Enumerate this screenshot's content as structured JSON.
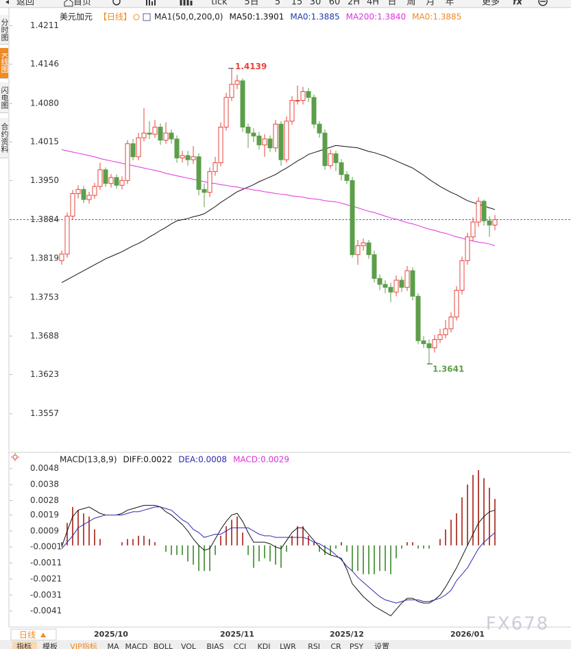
{
  "toolbar": [
    "返回",
    "首页",
    "tick",
    "5日",
    "5",
    "15",
    "30",
    "60",
    "2H",
    "4H",
    "日",
    "周",
    "月",
    "年",
    "更多",
    "fx"
  ],
  "sidebar": [
    "分时图",
    "K线图",
    "闪电图",
    "合约资料"
  ],
  "period_button": "日线",
  "tabs": [
    "指标",
    "模板",
    "VIP指标",
    "MA",
    "MACD",
    "BOLL",
    "VOL",
    "BIAS",
    "CCI",
    "KDJ",
    "LWR",
    "RSI",
    "CR",
    "PSY",
    "设置"
  ],
  "watermark": "FX678",
  "chart_data": [
    {
      "type": "candlestick",
      "title": "美元加元",
      "period": "【日线】",
      "indicator": "MA1(50,0,200,0)",
      "up_color": "#e5433b",
      "down_color": "#5c9e4a",
      "open": [
        1.3815,
        1.3826,
        1.389,
        1.3928,
        1.3935,
        1.3918,
        1.3925,
        1.394,
        1.3968,
        1.3945,
        1.3955,
        1.3942,
        1.395,
        1.4012,
        1.399,
        1.4022,
        1.403,
        1.4028,
        1.404,
        1.4018,
        1.403,
        1.402,
        1.3988,
        1.3992,
        1.3985,
        1.399,
        1.3935,
        1.393,
        1.3965,
        1.398,
        1.404,
        1.409,
        1.4112,
        1.4118,
        1.404,
        1.403,
        1.4025,
        1.401,
        1.402,
        1.4005,
        1.4045,
        1.3985,
        1.405,
        1.4085,
        1.4085,
        1.41,
        1.409,
        1.4045,
        1.403,
        1.3975,
        1.3995,
        1.398,
        1.396,
        1.395,
        1.3825,
        1.384,
        1.3845,
        1.3825,
        1.3785,
        1.3775,
        1.377,
        1.3762,
        1.3782,
        1.377,
        1.3798,
        1.3755,
        1.368,
        1.3675,
        1.3668,
        1.3682,
        1.369,
        1.37,
        1.372,
        1.3765,
        1.3815,
        1.3855,
        1.388,
        1.3915,
        1.3882,
        1.3875
      ],
      "high": [
        1.3832,
        1.3896,
        1.3934,
        1.3942,
        1.3941,
        1.3931,
        1.3946,
        1.398,
        1.3972,
        1.3961,
        1.396,
        1.3957,
        1.4018,
        1.402,
        1.403,
        1.4072,
        1.405,
        1.4052,
        1.4046,
        1.4048,
        1.4036,
        1.4026,
        1.4,
        1.4,
        1.4008,
        1.3996,
        1.3945,
        1.3972,
        1.399,
        1.4048,
        1.4098,
        1.4139,
        1.4128,
        1.4122,
        1.4046,
        1.4038,
        1.4032,
        1.4028,
        1.4026,
        1.4052,
        1.405,
        1.4058,
        1.4092,
        1.411,
        1.4108,
        1.4106,
        1.4095,
        1.405,
        1.4036,
        1.4002,
        1.4,
        1.3986,
        1.3966,
        1.3956,
        1.385,
        1.3852,
        1.385,
        1.3832,
        1.3792,
        1.3782,
        1.3778,
        1.379,
        1.3788,
        1.3806,
        1.3804,
        1.376,
        1.3688,
        1.3682,
        1.369,
        1.37,
        1.3715,
        1.3728,
        1.3772,
        1.3822,
        1.3862,
        1.3888,
        1.3922,
        1.3918,
        1.389,
        1.3892
      ],
      "low": [
        1.3808,
        1.382,
        1.3884,
        1.392,
        1.3912,
        1.3911,
        1.3919,
        1.3934,
        1.3939,
        1.3938,
        1.3936,
        1.3935,
        1.3944,
        1.3984,
        1.3984,
        1.4016,
        1.402,
        1.4022,
        1.401,
        1.4012,
        1.4012,
        1.398,
        1.398,
        1.3975,
        1.3978,
        1.3925,
        1.3905,
        1.3922,
        1.3958,
        1.3974,
        1.4034,
        1.4084,
        1.4104,
        1.4032,
        1.4005,
        1.4015,
        1.4002,
        1.399,
        1.3998,
        1.3998,
        1.3975,
        1.398,
        1.4044,
        1.4078,
        1.4078,
        1.4082,
        1.4038,
        1.4022,
        1.3968,
        1.397,
        1.3966,
        1.395,
        1.3944,
        1.382,
        1.3808,
        1.3832,
        1.3818,
        1.3778,
        1.3765,
        1.376,
        1.3745,
        1.3755,
        1.3762,
        1.3764,
        1.3748,
        1.3674,
        1.3668,
        1.3641,
        1.366,
        1.3676,
        1.3684,
        1.3694,
        1.3714,
        1.3758,
        1.3808,
        1.3848,
        1.3872,
        1.3874,
        1.3855,
        1.3866
      ],
      "close": [
        1.3826,
        1.389,
        1.3928,
        1.3935,
        1.3918,
        1.3925,
        1.394,
        1.3968,
        1.3945,
        1.3955,
        1.3942,
        1.395,
        1.4012,
        1.399,
        1.4022,
        1.403,
        1.4028,
        1.404,
        1.4018,
        1.403,
        1.402,
        1.3988,
        1.3992,
        1.3985,
        1.399,
        1.3935,
        1.393,
        1.3965,
        1.398,
        1.404,
        1.409,
        1.4112,
        1.4118,
        1.404,
        1.403,
        1.4025,
        1.401,
        1.402,
        1.4005,
        1.4045,
        1.3985,
        1.405,
        1.4085,
        1.4085,
        1.41,
        1.409,
        1.4045,
        1.403,
        1.3975,
        1.3995,
        1.398,
        1.396,
        1.395,
        1.3825,
        1.384,
        1.3845,
        1.3825,
        1.3785,
        1.3775,
        1.377,
        1.3762,
        1.3782,
        1.377,
        1.3798,
        1.3755,
        1.368,
        1.3675,
        1.3668,
        1.3682,
        1.369,
        1.37,
        1.372,
        1.3765,
        1.3815,
        1.3855,
        1.388,
        1.3915,
        1.3882,
        1.3875,
        1.3884
      ],
      "series": [
        {
          "name": "MA50:1.3901",
          "color": "#111111",
          "values": [
            1.3778,
            1.3783,
            1.3788,
            1.3793,
            1.3798,
            1.3803,
            1.3808,
            1.3813,
            1.3818,
            1.3822,
            1.3826,
            1.383,
            1.3835,
            1.384,
            1.3844,
            1.3849,
            1.3855,
            1.386,
            1.3866,
            1.3871,
            1.3877,
            1.3882,
            1.3884,
            1.3886,
            1.3889,
            1.3891,
            1.3894,
            1.39,
            1.3906,
            1.3913,
            1.3919,
            1.3925,
            1.3931,
            1.3935,
            1.3939,
            1.3943,
            1.3948,
            1.3952,
            1.3956,
            1.396,
            1.3966,
            1.3971,
            1.3977,
            1.3983,
            1.3988,
            1.3994,
            1.3997,
            1.4,
            1.4003,
            1.4006,
            1.4009,
            1.4008,
            1.4007,
            1.4006,
            1.4005,
            1.4002,
            1.3999,
            1.3997,
            1.3994,
            1.3991,
            1.3987,
            1.3983,
            1.3979,
            1.3975,
            1.3971,
            1.3965,
            1.3959,
            1.3952,
            1.3946,
            1.394,
            1.3935,
            1.393,
            1.3926,
            1.3921,
            1.3916,
            1.3913,
            1.391,
            1.3907,
            1.3904,
            1.3901
          ]
        },
        {
          "name": "MA200:1.3840",
          "color": "#e030e0",
          "values": [
            1.4002,
            1.4,
            1.3998,
            1.3996,
            1.3994,
            1.3992,
            1.399,
            1.3987,
            1.3985,
            1.3983,
            1.3981,
            1.3979,
            1.3977,
            1.3975,
            1.3973,
            1.3971,
            1.3969,
            1.3967,
            1.3965,
            1.3962,
            1.396,
            1.3958,
            1.3956,
            1.3954,
            1.3952,
            1.395,
            1.3948,
            1.3946,
            1.3945,
            1.3943,
            1.3942,
            1.394,
            1.3939,
            1.3937,
            1.3936,
            1.3934,
            1.3933,
            1.3931,
            1.393,
            1.3928,
            1.3927,
            1.3926,
            1.3924,
            1.3923,
            1.3922,
            1.392,
            1.3919,
            1.3918,
            1.3916,
            1.3915,
            1.3914,
            1.3912,
            1.3909,
            1.3907,
            1.3904,
            1.3901,
            1.3898,
            1.3896,
            1.3893,
            1.389,
            1.3887,
            1.3885,
            1.3882,
            1.3879,
            1.3877,
            1.3874,
            1.3871,
            1.3868,
            1.3866,
            1.3863,
            1.3861,
            1.3858,
            1.3855,
            1.3853,
            1.385,
            1.3848,
            1.3846,
            1.3845,
            1.3843,
            1.384
          ]
        }
      ],
      "extra_legend": [
        {
          "name": "MA0:1.3885",
          "color": "#1f3aa8"
        },
        {
          "name": "MA0:1.3885",
          "color": "#f0882a"
        }
      ],
      "last_price": 1.3884,
      "max_label": "1.4139",
      "min_label": "1.3641",
      "ylim": [
        1.3492,
        1.4238
      ],
      "yticks": [
        1.4211,
        1.4146,
        {
          "value": 1.408,
          "label": "1.4080"
        },
        1.4015,
        {
          "value": 1.395,
          "label": "1.3950"
        },
        1.3884,
        1.3819,
        1.3753,
        1.3688,
        1.3623,
        1.3557
      ],
      "grid": false
    },
    {
      "type": "macd",
      "title": "MACD(13,8,9)",
      "categories": [
        null,
        null,
        null,
        null,
        null,
        null,
        null,
        null,
        null,
        "2025/10",
        null,
        null,
        null,
        null,
        null,
        null,
        null,
        null,
        null,
        null,
        null,
        null,
        null,
        null,
        null,
        null,
        null,
        null,
        null,
        null,
        null,
        null,
        "2025/11",
        null,
        null,
        null,
        null,
        null,
        null,
        null,
        null,
        null,
        null,
        null,
        null,
        null,
        null,
        null,
        null,
        null,
        null,
        null,
        "2025/12",
        null,
        null,
        null,
        null,
        null,
        null,
        null,
        null,
        null,
        null,
        null,
        null,
        null,
        null,
        null,
        null,
        null,
        null,
        null,
        null,
        null,
        "2026/01",
        null,
        null,
        null,
        null,
        null
      ],
      "series": [
        {
          "name": "DIFF:0.0022",
          "color": "#111111",
          "values": [
            -0.0001,
            0.0009,
            0.0018,
            0.0022,
            0.0023,
            0.0024,
            0.0022,
            0.002,
            0.0019,
            0.0019,
            0.0019,
            0.002,
            0.0022,
            0.0023,
            0.0024,
            0.0025,
            0.0025,
            0.0025,
            0.0024,
            0.0021,
            0.0019,
            0.0016,
            0.0013,
            0.0009,
            0.0004,
            0.0,
            -0.0003,
            -0.0002,
            0.0004,
            0.001,
            0.0015,
            0.0019,
            0.002,
            0.0015,
            0.0008,
            0.0002,
            0.0002,
            0.0002,
            0.0001,
            -0.0001,
            -0.0002,
            0.0003,
            0.0008,
            0.0011,
            0.0011,
            0.0007,
            0.0003,
            -0.0001,
            -0.0004,
            -0.0006,
            -0.0007,
            -0.0008,
            -0.0015,
            -0.0024,
            -0.0028,
            -0.0032,
            -0.0035,
            -0.0038,
            -0.004,
            -0.0042,
            -0.0044,
            -0.004,
            -0.0036,
            -0.0033,
            -0.0033,
            -0.0035,
            -0.0036,
            -0.0036,
            -0.0034,
            -0.0031,
            -0.0026,
            -0.002,
            -0.0014,
            -0.0007,
            0.0,
            0.0007,
            0.0014,
            0.0018,
            0.0021,
            0.0022
          ]
        },
        {
          "name": "DEA:0.0008",
          "color": "#2a2ab0",
          "values": [
            -0.0002,
            0.0002,
            0.0006,
            0.0011,
            0.0013,
            0.0015,
            0.0017,
            0.0018,
            0.0019,
            0.0019,
            0.0019,
            0.0019,
            0.002,
            0.0021,
            0.0021,
            0.0022,
            0.0023,
            0.0024,
            0.0024,
            0.0023,
            0.0022,
            0.0019,
            0.0016,
            0.0014,
            0.001,
            0.0008,
            0.0005,
            0.0006,
            0.0007,
            0.0007,
            0.0009,
            0.0011,
            0.0011,
            0.0011,
            0.0011,
            0.0009,
            0.0007,
            0.0006,
            0.0006,
            0.0005,
            0.0005,
            0.0005,
            0.0005,
            0.0005,
            0.0005,
            0.0004,
            0.0002,
            0.0001,
            -0.0001,
            -0.0003,
            -0.0006,
            -0.0009,
            -0.0013,
            -0.0016,
            -0.002,
            -0.0023,
            -0.0026,
            -0.0029,
            -0.0032,
            -0.0034,
            -0.0035,
            -0.0036,
            -0.0035,
            -0.0034,
            -0.0034,
            -0.0034,
            -0.0035,
            -0.0035,
            -0.0034,
            -0.0033,
            -0.0031,
            -0.0028,
            -0.0022,
            -0.0018,
            -0.0014,
            -0.0008,
            -0.0002,
            0.0002,
            0.0005,
            0.0008
          ]
        },
        {
          "name": "MACD:0.0029",
          "type": "bar",
          "color": "#e030e0",
          "up_color": "#b8473e",
          "down_color": "#5f9f50",
          "values": [
            0.0002,
            0.0014,
            0.0024,
            0.0022,
            0.002,
            0.0018,
            0.001,
            0.0004,
            0,
            0,
            0,
            0.0002,
            0.0004,
            0.0004,
            0.0006,
            0.0006,
            0.0004,
            0.0002,
            0,
            -0.0004,
            -0.0006,
            -0.0006,
            -0.0006,
            -0.001,
            -0.0012,
            -0.0016,
            -0.0016,
            -0.0016,
            -0.0006,
            0.0006,
            0.0012,
            0.0016,
            0.0018,
            0.0008,
            -0.0006,
            -0.0014,
            -0.001,
            -0.0008,
            -0.001,
            -0.0012,
            -0.0014,
            -0.0004,
            0.0006,
            0.0012,
            0.0012,
            0.0006,
            0.0002,
            -0.0004,
            -0.0006,
            -0.0006,
            -0.0002,
            0.0002,
            -0.0004,
            -0.0016,
            -0.0016,
            -0.0018,
            -0.0018,
            -0.0018,
            -0.0016,
            -0.0016,
            -0.0018,
            -0.0008,
            -0.0002,
            0.0002,
            0.0002,
            -0.0002,
            -0.0002,
            -0.0002,
            0,
            0.0004,
            0.001,
            0.0016,
            0.002,
            0.003,
            0.0038,
            0.0044,
            0.0047,
            0.0042,
            0.0036,
            0.0029
          ]
        }
      ],
      "ylim": [
        -0.0051,
        0.0053
      ],
      "yticks": [
        0.0048,
        0.0038,
        0.0028,
        0.0019,
        0.0009,
        -0.0001,
        -0.0011,
        -0.0021,
        -0.0031,
        -0.0041
      ]
    }
  ]
}
